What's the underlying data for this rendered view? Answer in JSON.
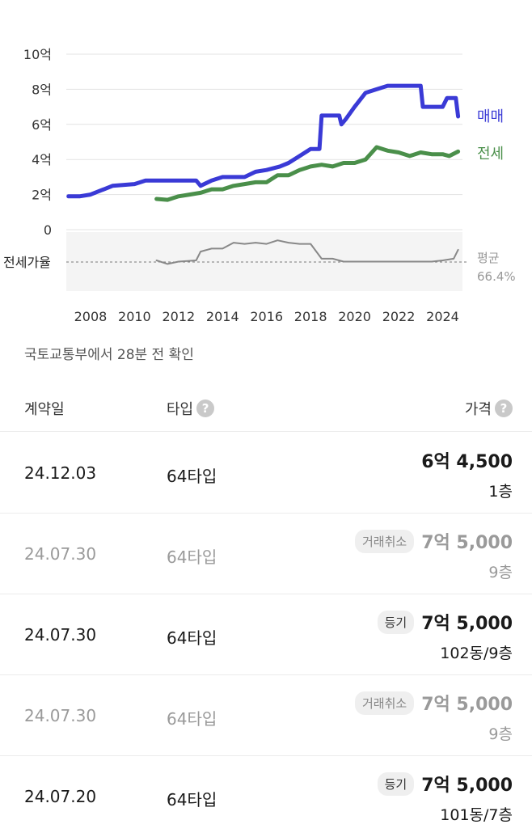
{
  "chart_data": {
    "type": "line",
    "y_tick_labels": [
      "0",
      "2억",
      "4억",
      "6억",
      "8억",
      "10억"
    ],
    "y_tick_values": [
      0,
      2,
      4,
      6,
      8,
      10
    ],
    "ylim": [
      0,
      10
    ],
    "x_tick_labels": [
      "2008",
      "2010",
      "2012",
      "2014",
      "2016",
      "2018",
      "2020",
      "2022",
      "2024"
    ],
    "x_tick_values": [
      2008,
      2010,
      2012,
      2014,
      2016,
      2018,
      2020,
      2022,
      2024
    ],
    "xlim": [
      2006.9,
      2024.9
    ],
    "grid": true,
    "legend_placement": "right",
    "series": [
      {
        "name": "매매",
        "color": "#3a3ad6",
        "points": [
          [
            2007.0,
            1.9
          ],
          [
            2007.5,
            1.9
          ],
          [
            2008.0,
            2.0
          ],
          [
            2009.0,
            2.5
          ],
          [
            2010.0,
            2.6
          ],
          [
            2010.5,
            2.8
          ],
          [
            2011.2,
            2.8
          ],
          [
            2012.0,
            2.8
          ],
          [
            2012.8,
            2.8
          ],
          [
            2013.0,
            2.5
          ],
          [
            2013.5,
            2.8
          ],
          [
            2014.0,
            3.0
          ],
          [
            2014.6,
            3.0
          ],
          [
            2015.0,
            3.0
          ],
          [
            2015.5,
            3.3
          ],
          [
            2016.0,
            3.4
          ],
          [
            2016.6,
            3.6
          ],
          [
            2017.0,
            3.8
          ],
          [
            2017.5,
            4.2
          ],
          [
            2018.0,
            4.6
          ],
          [
            2018.4,
            4.6
          ],
          [
            2018.5,
            6.5
          ],
          [
            2019.0,
            6.5
          ],
          [
            2019.3,
            6.5
          ],
          [
            2019.4,
            6.0
          ],
          [
            2019.6,
            6.3
          ],
          [
            2020.0,
            7.0
          ],
          [
            2020.5,
            7.8
          ],
          [
            2021.0,
            8.0
          ],
          [
            2021.5,
            8.2
          ],
          [
            2022.0,
            8.2
          ],
          [
            2022.5,
            8.2
          ],
          [
            2023.0,
            8.2
          ],
          [
            2023.1,
            7.0
          ],
          [
            2023.5,
            7.0
          ],
          [
            2024.0,
            7.0
          ],
          [
            2024.2,
            7.5
          ],
          [
            2024.5,
            7.5
          ],
          [
            2024.6,
            7.5
          ],
          [
            2024.7,
            6.45
          ]
        ]
      },
      {
        "name": "전세",
        "color": "#4a8f4a",
        "points": [
          [
            2011.0,
            1.75
          ],
          [
            2011.5,
            1.7
          ],
          [
            2012.0,
            1.9
          ],
          [
            2012.5,
            2.0
          ],
          [
            2013.0,
            2.1
          ],
          [
            2013.5,
            2.3
          ],
          [
            2014.0,
            2.3
          ],
          [
            2014.5,
            2.5
          ],
          [
            2015.0,
            2.6
          ],
          [
            2015.5,
            2.7
          ],
          [
            2016.0,
            2.7
          ],
          [
            2016.5,
            3.1
          ],
          [
            2017.0,
            3.1
          ],
          [
            2017.5,
            3.4
          ],
          [
            2018.0,
            3.6
          ],
          [
            2018.5,
            3.7
          ],
          [
            2019.0,
            3.6
          ],
          [
            2019.5,
            3.8
          ],
          [
            2020.0,
            3.8
          ],
          [
            2020.5,
            4.0
          ],
          [
            2021.0,
            4.7
          ],
          [
            2021.5,
            4.5
          ],
          [
            2022.0,
            4.4
          ],
          [
            2022.5,
            4.2
          ],
          [
            2023.0,
            4.4
          ],
          [
            2023.5,
            4.3
          ],
          [
            2024.0,
            4.3
          ],
          [
            2024.3,
            4.2
          ],
          [
            2024.7,
            4.45
          ]
        ]
      },
      {
        "name": "전세가율",
        "color": "#888888",
        "points": [
          [
            2011.0,
            0.52
          ],
          [
            2011.5,
            0.46
          ],
          [
            2012.0,
            0.5
          ],
          [
            2012.8,
            0.52
          ],
          [
            2013.0,
            0.67
          ],
          [
            2013.5,
            0.72
          ],
          [
            2014.0,
            0.72
          ],
          [
            2014.5,
            0.82
          ],
          [
            2015.0,
            0.8
          ],
          [
            2015.5,
            0.82
          ],
          [
            2016.0,
            0.8
          ],
          [
            2016.5,
            0.86
          ],
          [
            2017.0,
            0.82
          ],
          [
            2017.5,
            0.8
          ],
          [
            2018.0,
            0.8
          ],
          [
            2018.5,
            0.55
          ],
          [
            2019.0,
            0.55
          ],
          [
            2019.5,
            0.5
          ],
          [
            2020.0,
            0.5
          ],
          [
            2020.5,
            0.5
          ],
          [
            2021.0,
            0.5
          ],
          [
            2021.5,
            0.5
          ],
          [
            2022.0,
            0.5
          ],
          [
            2022.5,
            0.5
          ],
          [
            2023.0,
            0.5
          ],
          [
            2023.5,
            0.5
          ],
          [
            2024.0,
            0.52
          ],
          [
            2024.5,
            0.55
          ],
          [
            2024.7,
            0.7
          ]
        ]
      }
    ],
    "legend": [
      "매매",
      "전세"
    ],
    "ratio_label": "전세가율",
    "average_label": "평균",
    "average_value": "66.4%"
  },
  "source_text": "국토교통부에서 28분 전 확인",
  "table": {
    "headers": {
      "date": "계약일",
      "type": "타입",
      "price": "가격"
    },
    "help_icon": "?",
    "rows": [
      {
        "date": "24.12.03",
        "type": "64타입",
        "price": "6억 4,500",
        "floor": "1층",
        "badge": "",
        "status": "normal"
      },
      {
        "date": "24.07.30",
        "type": "64타입",
        "price": "7억 5,000",
        "floor": "9층",
        "badge": "거래취소",
        "status": "cancelled"
      },
      {
        "date": "24.07.30",
        "type": "64타입",
        "price": "7억 5,000",
        "floor": "102동/9층",
        "badge": "등기",
        "status": "normal"
      },
      {
        "date": "24.07.30",
        "type": "64타입",
        "price": "7억 5,000",
        "floor": "9층",
        "badge": "거래취소",
        "status": "cancelled"
      },
      {
        "date": "24.07.20",
        "type": "64타입",
        "price": "7억 5,000",
        "floor": "101동/7층",
        "badge": "등기",
        "status": "normal"
      }
    ]
  }
}
